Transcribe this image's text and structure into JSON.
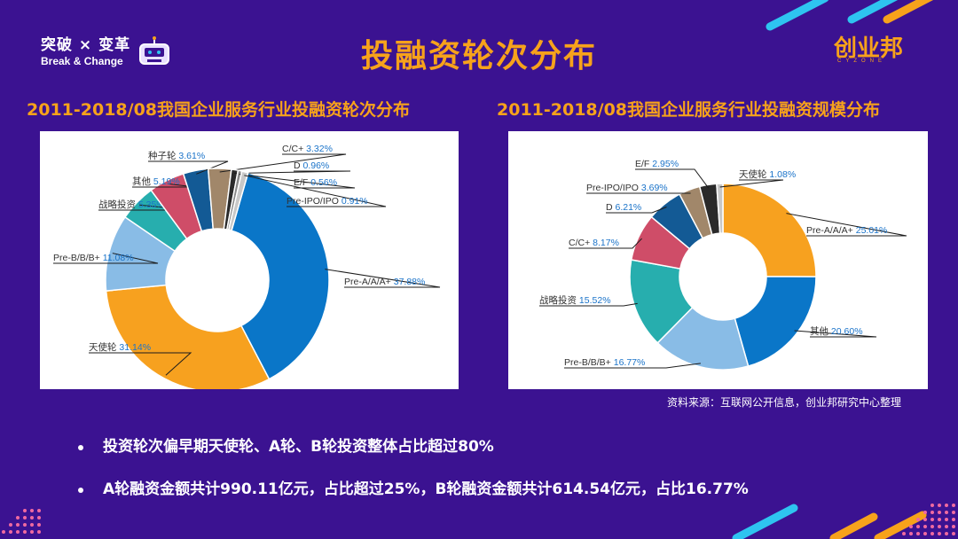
{
  "header": {
    "logo_cn": "突破 × 变革",
    "logo_en": "Break & Change",
    "title": "投融资轮次分布",
    "brand": "创业邦",
    "brand_sub": "CYZONE"
  },
  "source_note": "资料来源：互联网公开信息，创业邦研究中心整理",
  "bullets": [
    "投资轮次偏早期天使轮、A轮、B轮投资整体占比超过80%",
    "A轮融资金额共计990.11亿元，占比超过25%，B轮融资金额共计614.54亿元，占比16.77%"
  ],
  "chart_data": [
    {
      "type": "pie",
      "title": "2011-2018/08我国企业服务行业投融资轮次分布",
      "donut": true,
      "series": [
        {
          "label": "Pre-A/A/A+",
          "value": 37.88,
          "display": "37.88%",
          "color": "#0a76c8"
        },
        {
          "label": "天使轮",
          "value": 31.14,
          "display": "31.14%",
          "color": "#f7a11f"
        },
        {
          "label": "Pre-B/B/B+",
          "value": 11.08,
          "display": "11.08%",
          "color": "#89bce6"
        },
        {
          "label": "战略投资",
          "value": 5.35,
          "display": "5.35%",
          "color": "#27aeae"
        },
        {
          "label": "其他",
          "value": 5.19,
          "display": "5.19%",
          "color": "#cf4d68"
        },
        {
          "label": "种子轮",
          "value": 3.61,
          "display": "3.61%",
          "color": "#135a95"
        },
        {
          "label": "C/C+",
          "value": 3.32,
          "display": "3.32%",
          "color": "#a1876a"
        },
        {
          "label": "D",
          "value": 0.96,
          "display": "0.96%",
          "color": "#2a2a2a"
        },
        {
          "label": "E/F",
          "value": 0.56,
          "display": "0.56%",
          "color": "#888888"
        },
        {
          "label": "Pre-IPO/IPO",
          "value": 0.91,
          "display": "0.91%",
          "color": "#c8c8c8"
        }
      ]
    },
    {
      "type": "pie",
      "title": "2011-2018/08我国企业服务行业投融资规模分布",
      "donut": true,
      "series": [
        {
          "label": "Pre-A/A/A+",
          "value": 25.01,
          "display": "25.01%",
          "color": "#f7a11f"
        },
        {
          "label": "其他",
          "value": 20.6,
          "display": "20.60%",
          "color": "#0a76c8"
        },
        {
          "label": "Pre-B/B/B+",
          "value": 16.77,
          "display": "16.77%",
          "color": "#89bce6"
        },
        {
          "label": "战略投资",
          "value": 15.52,
          "display": "15.52%",
          "color": "#27aeae"
        },
        {
          "label": "C/C+",
          "value": 8.17,
          "display": "8.17%",
          "color": "#cf4d68"
        },
        {
          "label": "D",
          "value": 6.21,
          "display": "6.21%",
          "color": "#135a95"
        },
        {
          "label": "Pre-IPO/IPO",
          "value": 3.69,
          "display": "3.69%",
          "color": "#a1876a"
        },
        {
          "label": "E/F",
          "value": 2.95,
          "display": "2.95%",
          "color": "#2a2a2a"
        },
        {
          "label": "天使轮",
          "value": 1.08,
          "display": "1.08%",
          "color": "#c8c8c8"
        }
      ]
    }
  ]
}
